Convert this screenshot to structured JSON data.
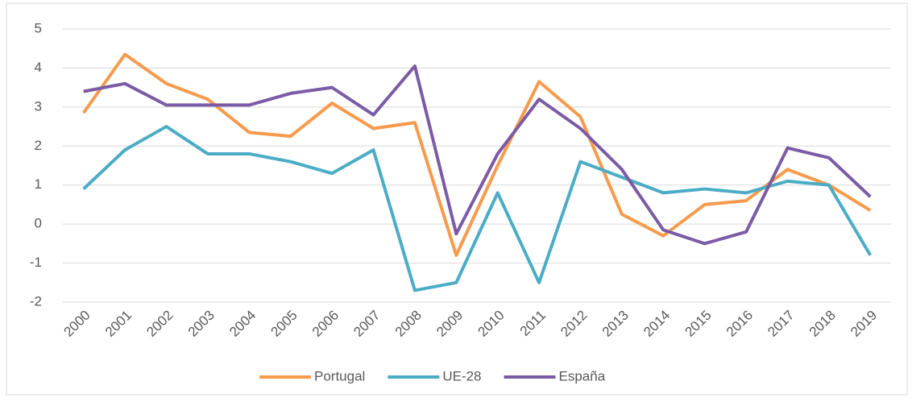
{
  "chart_data": {
    "type": "line",
    "categories": [
      "2000",
      "2001",
      "2002",
      "2003",
      "2004",
      "2005",
      "2006",
      "2007",
      "2008",
      "2009",
      "2010",
      "2011",
      "2012",
      "2013",
      "2014",
      "2015",
      "2016",
      "2017",
      "2018",
      "2019"
    ],
    "series": [
      {
        "name": "Portugal",
        "color": "#f79a4b",
        "values": [
          2.85,
          4.35,
          3.6,
          3.2,
          2.35,
          2.25,
          3.1,
          2.45,
          2.6,
          -0.8,
          1.5,
          3.65,
          2.75,
          0.25,
          -0.3,
          0.5,
          0.6,
          1.4,
          1.0,
          0.35
        ]
      },
      {
        "name": "UE-28",
        "color": "#4bacc6",
        "values": [
          0.9,
          1.9,
          2.5,
          1.8,
          1.8,
          1.6,
          1.3,
          1.9,
          -1.7,
          -1.5,
          0.8,
          -1.5,
          1.6,
          1.2,
          0.8,
          0.9,
          0.8,
          1.1,
          1.0,
          -0.8
        ]
      },
      {
        "name": "España",
        "color": "#7b5ba6",
        "values": [
          3.4,
          3.6,
          3.05,
          3.05,
          3.05,
          3.35,
          3.5,
          2.8,
          4.05,
          -0.25,
          1.8,
          3.2,
          2.45,
          1.4,
          -0.15,
          -0.5,
          -0.2,
          1.95,
          1.7,
          0.7
        ]
      }
    ],
    "ylim": [
      -2,
      5
    ],
    "yticks": [
      -2,
      -1,
      0,
      1,
      2,
      3,
      4,
      5
    ],
    "grid": true,
    "legend": "bottom"
  }
}
